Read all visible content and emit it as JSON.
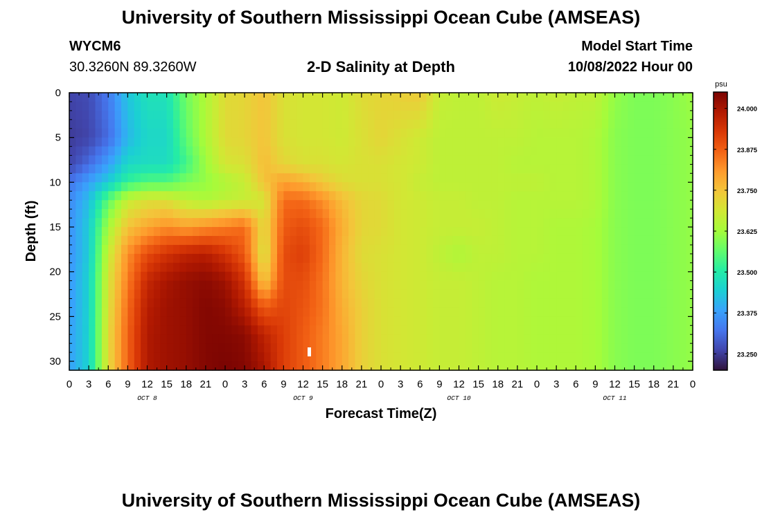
{
  "header": {
    "title": "University of Southern Mississippi Ocean Cube (AMSEAS)",
    "station": "WYCM6",
    "coords": "30.3260N  89.3260W",
    "subtitle": "2-D Salinity at Depth",
    "start_label": "Model Start Time",
    "start_value": "10/08/2022 Hour 00"
  },
  "footer": {
    "title": "University of Southern Mississippi Ocean Cube (AMSEAS)"
  },
  "colors": {
    "palette": [
      "#30123b",
      "#4145ab",
      "#4675ed",
      "#39a2fc",
      "#1bcfd4",
      "#24eca6",
      "#61fc6c",
      "#a4fc3b",
      "#d1e834",
      "#f3c63a",
      "#fe9b2d",
      "#f36315",
      "#d93806",
      "#b11901",
      "#7a0402"
    ]
  },
  "chart_data": {
    "type": "heatmap",
    "title": "2-D Salinity at Depth",
    "xlabel": "Forecast Time(Z)",
    "ylabel": "Depth (ft)",
    "x_range_hours": [
      0,
      96
    ],
    "x_tick_labels": [
      "0",
      "3",
      "6",
      "9",
      "12",
      "15",
      "18",
      "21",
      "0",
      "3",
      "6",
      "9",
      "12",
      "15",
      "18",
      "21",
      "0",
      "3",
      "6",
      "9",
      "12",
      "15",
      "18",
      "21",
      "0",
      "3",
      "6",
      "9",
      "12",
      "15",
      "18",
      "21",
      "0"
    ],
    "date_labels": [
      {
        "label": "OCT 8",
        "hour": 12
      },
      {
        "label": "OCT 9",
        "hour": 36
      },
      {
        "label": "OCT 10",
        "hour": 60
      },
      {
        "label": "OCT 11",
        "hour": 84
      }
    ],
    "y_range_ft": [
      0,
      31
    ],
    "y_ticks": [
      0,
      5,
      10,
      15,
      20,
      25,
      30
    ],
    "colorbar": {
      "unit": "psu",
      "min": 23.2,
      "max": 24.05,
      "ticks": [
        "24.000",
        "23.875",
        "23.750",
        "23.625",
        "23.500",
        "23.375",
        "23.250"
      ]
    },
    "grid_hours": [
      0,
      3,
      6,
      9,
      12,
      15,
      18,
      21,
      24,
      27,
      30,
      33,
      36,
      39,
      42,
      45,
      48,
      51,
      54,
      57,
      60,
      63,
      66,
      69,
      72,
      75,
      78,
      81,
      84,
      87,
      90,
      93,
      96
    ],
    "grid_depths": [
      0,
      5,
      8,
      10,
      12,
      15,
      18,
      21,
      24,
      27,
      31
    ],
    "values": [
      [
        23.26,
        23.27,
        23.33,
        23.43,
        23.48,
        23.48,
        23.58,
        23.64,
        23.71,
        23.72,
        23.75,
        23.7,
        23.69,
        23.69,
        23.68,
        23.71,
        23.72,
        23.73,
        23.74,
        23.67,
        23.66,
        23.66,
        23.68,
        23.67,
        23.66,
        23.67,
        23.66,
        23.66,
        23.61,
        23.59,
        23.59,
        23.6,
        23.62
      ],
      [
        23.25,
        23.26,
        23.31,
        23.41,
        23.46,
        23.46,
        23.56,
        23.64,
        23.71,
        23.72,
        23.75,
        23.7,
        23.69,
        23.69,
        23.68,
        23.7,
        23.72,
        23.7,
        23.68,
        23.66,
        23.66,
        23.66,
        23.66,
        23.66,
        23.65,
        23.65,
        23.65,
        23.64,
        23.6,
        23.59,
        23.59,
        23.6,
        23.61
      ],
      [
        23.26,
        23.31,
        23.38,
        23.46,
        23.47,
        23.47,
        23.53,
        23.62,
        23.69,
        23.7,
        23.76,
        23.72,
        23.7,
        23.7,
        23.69,
        23.7,
        23.7,
        23.69,
        23.68,
        23.66,
        23.66,
        23.66,
        23.66,
        23.65,
        23.65,
        23.65,
        23.65,
        23.64,
        23.6,
        23.59,
        23.59,
        23.6,
        23.61
      ],
      [
        23.32,
        23.38,
        23.44,
        23.52,
        23.55,
        23.55,
        23.59,
        23.61,
        23.64,
        23.67,
        23.75,
        23.8,
        23.78,
        23.74,
        23.71,
        23.7,
        23.7,
        23.69,
        23.67,
        23.66,
        23.66,
        23.66,
        23.66,
        23.66,
        23.66,
        23.65,
        23.65,
        23.64,
        23.6,
        23.59,
        23.59,
        23.6,
        23.61
      ],
      [
        23.35,
        23.42,
        23.56,
        23.67,
        23.7,
        23.7,
        23.66,
        23.64,
        23.66,
        23.67,
        23.69,
        23.86,
        23.86,
        23.82,
        23.76,
        23.72,
        23.71,
        23.69,
        23.68,
        23.67,
        23.67,
        23.66,
        23.66,
        23.65,
        23.65,
        23.65,
        23.65,
        23.64,
        23.6,
        23.59,
        23.59,
        23.6,
        23.61
      ],
      [
        23.36,
        23.44,
        23.63,
        23.75,
        23.79,
        23.82,
        23.8,
        23.82,
        23.84,
        23.86,
        23.71,
        23.88,
        23.9,
        23.86,
        23.78,
        23.72,
        23.71,
        23.69,
        23.68,
        23.67,
        23.67,
        23.67,
        23.66,
        23.65,
        23.65,
        23.64,
        23.64,
        23.63,
        23.6,
        23.59,
        23.59,
        23.6,
        23.61
      ],
      [
        23.36,
        23.44,
        23.67,
        23.82,
        23.9,
        23.94,
        23.97,
        23.98,
        23.94,
        23.88,
        23.69,
        23.9,
        23.92,
        23.86,
        23.77,
        23.71,
        23.7,
        23.69,
        23.68,
        23.66,
        23.64,
        23.66,
        23.66,
        23.65,
        23.65,
        23.64,
        23.64,
        23.63,
        23.6,
        23.59,
        23.59,
        23.6,
        23.61
      ],
      [
        23.37,
        23.45,
        23.69,
        23.84,
        23.96,
        24.0,
        24.02,
        24.03,
        24.01,
        23.94,
        23.74,
        23.9,
        23.9,
        23.85,
        23.77,
        23.72,
        23.7,
        23.69,
        23.68,
        23.67,
        23.67,
        23.66,
        23.65,
        23.65,
        23.64,
        23.64,
        23.64,
        23.63,
        23.6,
        23.59,
        23.59,
        23.6,
        23.61
      ],
      [
        23.37,
        23.45,
        23.7,
        23.86,
        23.98,
        24.01,
        24.02,
        24.04,
        24.03,
        23.98,
        23.88,
        23.91,
        23.89,
        23.85,
        23.78,
        23.73,
        23.7,
        23.69,
        23.68,
        23.67,
        23.67,
        23.66,
        23.65,
        23.65,
        23.64,
        23.64,
        23.64,
        23.63,
        23.6,
        23.59,
        23.59,
        23.6,
        23.61
      ],
      [
        23.38,
        23.45,
        23.71,
        23.87,
        23.99,
        24.01,
        24.02,
        24.04,
        24.04,
        24.03,
        23.97,
        23.92,
        23.88,
        23.84,
        23.79,
        23.73,
        23.7,
        23.69,
        23.68,
        23.67,
        23.67,
        23.66,
        23.65,
        23.65,
        23.64,
        23.64,
        23.64,
        23.63,
        23.6,
        23.59,
        23.59,
        23.6,
        23.61
      ],
      [
        23.38,
        23.45,
        23.71,
        23.87,
        23.99,
        24.01,
        24.02,
        24.04,
        24.05,
        24.04,
        24.0,
        23.92,
        23.88,
        23.84,
        23.79,
        23.73,
        23.7,
        23.69,
        23.68,
        23.67,
        23.67,
        23.66,
        23.65,
        23.65,
        23.64,
        23.64,
        23.64,
        23.63,
        23.6,
        23.59,
        23.59,
        23.6,
        23.61
      ]
    ]
  }
}
